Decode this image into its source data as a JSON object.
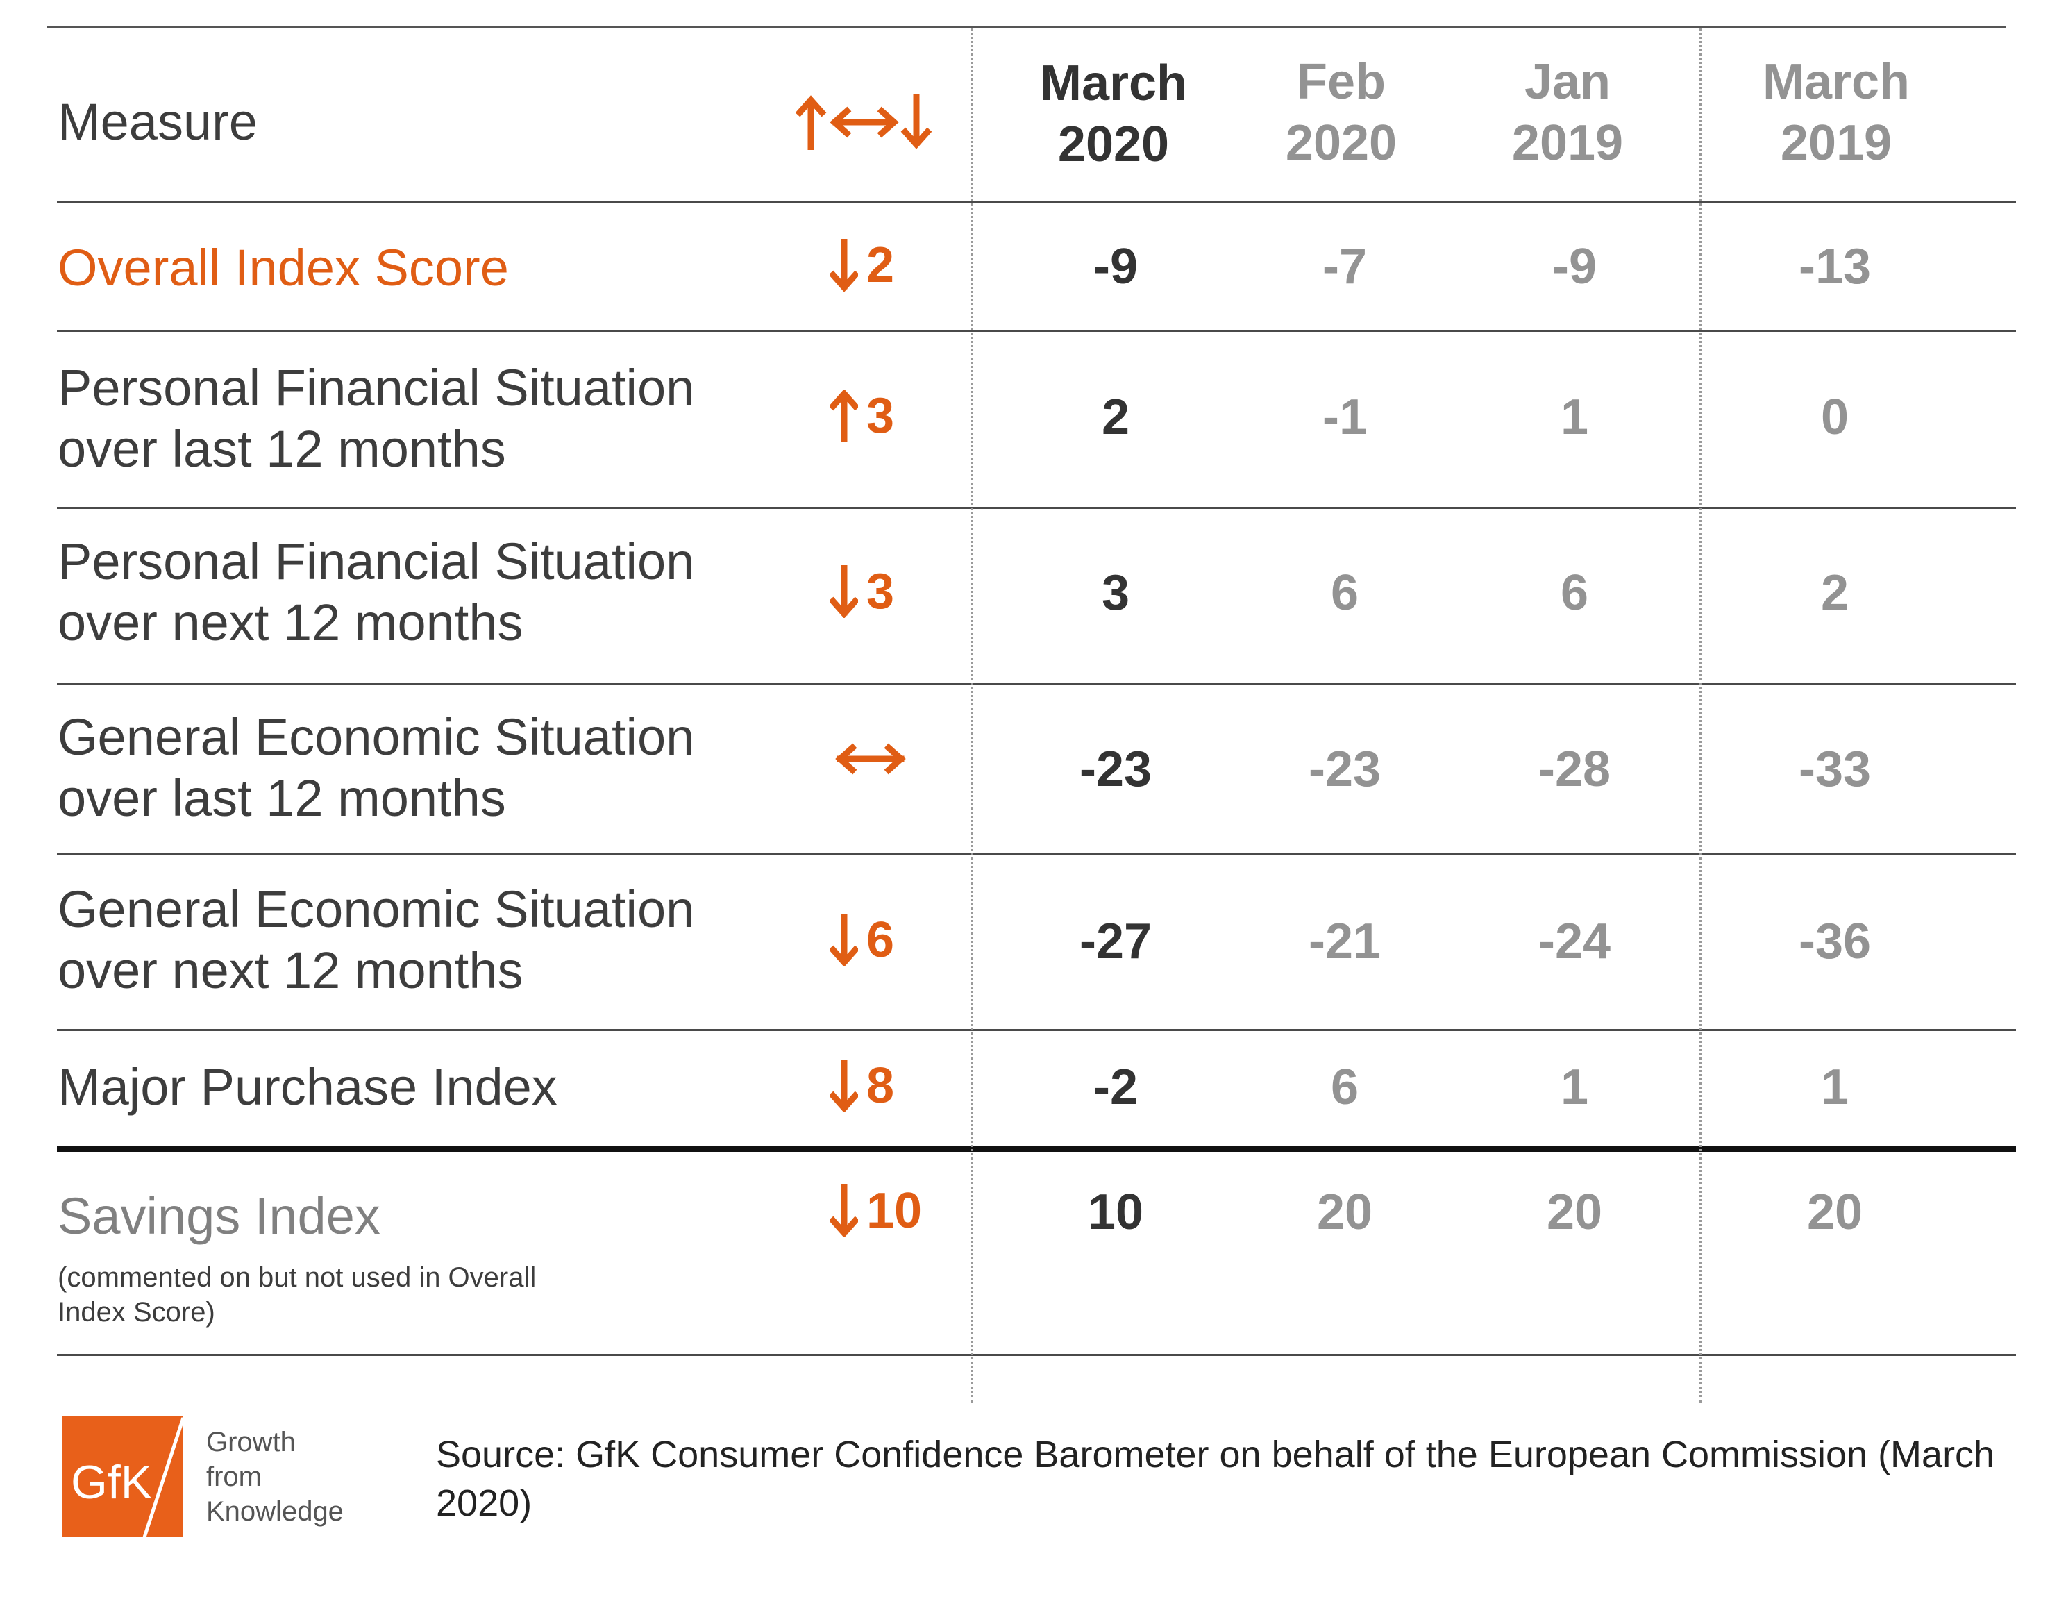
{
  "chart_data": {
    "type": "table",
    "columns": [
      "Measure",
      "↑↔↓",
      "March 2020",
      "Feb 2020",
      "Jan 2019",
      "March 2019"
    ],
    "rows": [
      {
        "measure": "Overall Index Score",
        "direction": "down",
        "change": "2",
        "values": [
          "-9",
          "-7",
          "-9",
          "-13"
        ]
      },
      {
        "measure": "Personal Financial Situation over last 12 months",
        "direction": "up",
        "change": "3",
        "values": [
          "2",
          "-1",
          "1",
          "0"
        ]
      },
      {
        "measure": "Personal Financial Situation over next 12 months",
        "direction": "down",
        "change": "3",
        "values": [
          "3",
          "6",
          "6",
          "2"
        ]
      },
      {
        "measure": "General Economic Situation over last 12 months",
        "direction": "flat",
        "change": "",
        "values": [
          "-23",
          "-23",
          "-28",
          "-33"
        ]
      },
      {
        "measure": "General Economic Situation over next 12 months",
        "direction": "down",
        "change": "6",
        "values": [
          "-27",
          "-21",
          "-24",
          "-36"
        ]
      },
      {
        "measure": "Major Purchase Index",
        "direction": "down",
        "change": "8",
        "values": [
          "-2",
          "6",
          "1",
          "1"
        ]
      },
      {
        "measure": "Savings Index",
        "note": "(commented on but not used in Overall Index Score)",
        "direction": "down",
        "change": "10",
        "values": [
          "10",
          "20",
          "20",
          "20"
        ]
      }
    ]
  },
  "header": {
    "measure": "Measure",
    "col1_line1": "March",
    "col1_line2": "2020",
    "col2_line1": "Feb",
    "col2_line2": "2020",
    "col3_line1": "Jan",
    "col3_line2": "2019",
    "col4_line1": "March",
    "col4_line2": "2019"
  },
  "labels": {
    "r0": "Overall Index Score",
    "r1a": "Personal Financial Situation",
    "r1b": "over last 12 months",
    "r2a": "Personal Financial Situation",
    "r2b": "over next 12 months",
    "r3a": "General Economic Situation",
    "r3b": "over last 12 months",
    "r4a": "General Economic Situation",
    "r4b": "over next 12 months",
    "r5": "Major Purchase Index",
    "r6": "Savings Index",
    "r6_note": "(commented on but not used in Overall Index Score)"
  },
  "footer": {
    "logo_text": "GfK",
    "tagline_1": "Growth",
    "tagline_2": "from",
    "tagline_3": "Knowledge",
    "source": "Source: GfK Consumer Confidence Barometer on behalf of the European Commission (March 2020)"
  },
  "colors": {
    "accent": "#e05d14",
    "current": "#333333",
    "previous": "#939393",
    "logo": "#e8601a"
  }
}
